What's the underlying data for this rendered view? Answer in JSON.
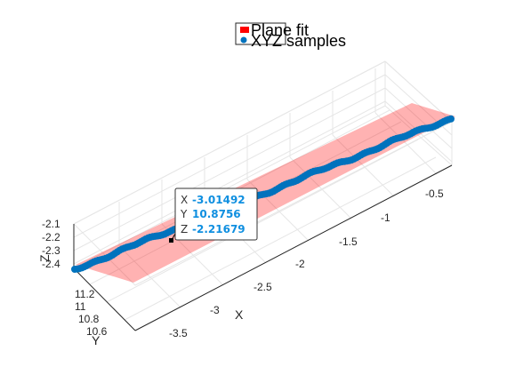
{
  "chart_data": {
    "type": "scatter",
    "subtype": "3d-scatter-with-plane",
    "xlabel": "X",
    "ylabel": "Y",
    "zlabel": "Z",
    "x_ticks": [
      "-3.5",
      "-3",
      "-2.5",
      "-2",
      "-1.5",
      "-1",
      "-0.5"
    ],
    "y_ticks": [
      "10.6",
      "10.8",
      "11",
      "11.2"
    ],
    "z_ticks": [
      "-2.4",
      "-2.3",
      "-2.2",
      "-2.1"
    ],
    "xlim": [
      -3.9,
      -0.2
    ],
    "ylim": [
      10.5,
      11.3
    ],
    "zlim": [
      -2.45,
      -2.05
    ],
    "grid": true,
    "legend_location": "top",
    "series": [
      {
        "name": "Plane fit",
        "kind": "surface",
        "color": "#ff0000",
        "opacity": 0.3
      },
      {
        "name": "XYZ samples",
        "kind": "points",
        "color": "#0072bd",
        "x_start": -3.9,
        "x_end": -0.2,
        "count": 160
      }
    ],
    "datatip": {
      "x_label": "X",
      "x_value": "-3.01492",
      "y_label": "Y",
      "y_value": "10.8756",
      "z_label": "Z",
      "z_value": "-2.21679"
    }
  }
}
